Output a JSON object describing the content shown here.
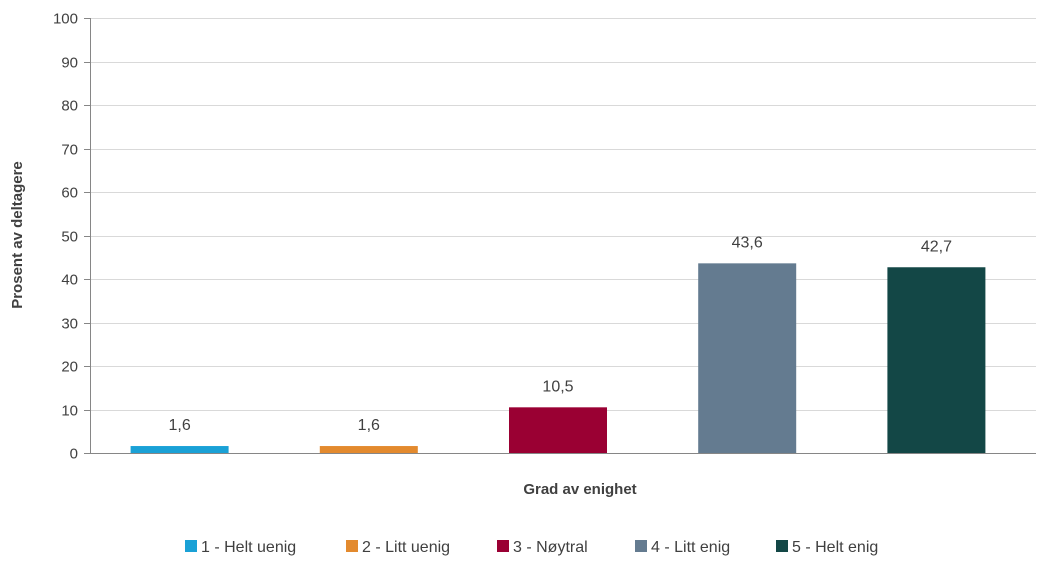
{
  "chart_data": {
    "type": "bar",
    "title": "",
    "xlabel": "Grad av enighet",
    "ylabel": "Prosent av deltagere",
    "ylim": [
      0,
      100
    ],
    "yticks": [
      0,
      10,
      20,
      30,
      40,
      50,
      60,
      70,
      80,
      90,
      100
    ],
    "grid": true,
    "legend_position": "bottom",
    "categories": [
      "1 - Helt uenig",
      "2 - Litt uenig",
      "3 - Nøytral",
      "4 - Litt enig",
      "5 - Helt enig"
    ],
    "values": [
      1.6,
      1.6,
      10.5,
      43.6,
      42.7
    ],
    "value_labels": [
      "1,6",
      "1,6",
      "10,5",
      "43,6",
      "42,7"
    ],
    "colors": [
      "#1aa1d6",
      "#e38a2e",
      "#9a0033",
      "#647b90",
      "#134746"
    ]
  }
}
